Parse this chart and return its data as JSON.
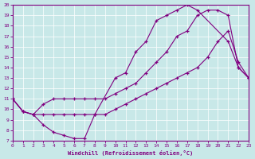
{
  "xlabel": "Windchill (Refroidissement éolien,°C)",
  "background_color": "#c8e8e8",
  "line_color": "#800080",
  "line1_x": [
    0,
    1,
    2,
    3,
    4,
    5,
    6,
    7,
    8,
    10,
    11,
    12,
    13,
    14,
    15,
    16,
    17,
    18,
    21,
    22,
    23
  ],
  "line1_y": [
    11,
    9.8,
    9.5,
    8.5,
    7.8,
    7.5,
    7.2,
    7.2,
    9.5,
    13.0,
    13.5,
    15.5,
    16.5,
    18.5,
    19.0,
    19.5,
    20.0,
    19.5,
    16.5,
    14.0,
    13.0
  ],
  "line2_x": [
    0,
    1,
    2,
    3,
    4,
    5,
    6,
    7,
    8,
    9,
    10,
    11,
    12,
    13,
    14,
    15,
    16,
    17,
    18,
    19,
    20,
    21,
    22,
    23
  ],
  "line2_y": [
    11,
    9.8,
    9.5,
    9.5,
    9.5,
    9.5,
    9.5,
    9.5,
    9.5,
    9.5,
    10.0,
    10.5,
    11.0,
    11.5,
    12.0,
    12.5,
    13.0,
    13.5,
    14.0,
    15.0,
    16.5,
    17.5,
    14.5,
    13.0
  ],
  "line3_x": [
    0,
    1,
    2,
    3,
    4,
    5,
    6,
    7,
    8,
    9,
    10,
    11,
    12,
    13,
    14,
    15,
    16,
    17,
    18,
    19,
    20,
    21,
    22,
    23
  ],
  "line3_y": [
    11,
    9.8,
    9.5,
    10.5,
    11.0,
    11.0,
    11.0,
    11.0,
    11.0,
    11.0,
    11.5,
    12.0,
    12.5,
    13.5,
    14.5,
    15.5,
    17.0,
    17.5,
    19.0,
    19.5,
    19.5,
    19.0,
    14.0,
    13.0
  ],
  "xlim": [
    0,
    23
  ],
  "ylim": [
    7,
    20
  ],
  "xticks": [
    0,
    1,
    2,
    3,
    4,
    5,
    6,
    7,
    8,
    9,
    10,
    11,
    12,
    13,
    14,
    15,
    16,
    17,
    18,
    19,
    20,
    21,
    22,
    23
  ],
  "yticks": [
    7,
    8,
    9,
    10,
    11,
    12,
    13,
    14,
    15,
    16,
    17,
    18,
    19,
    20
  ]
}
